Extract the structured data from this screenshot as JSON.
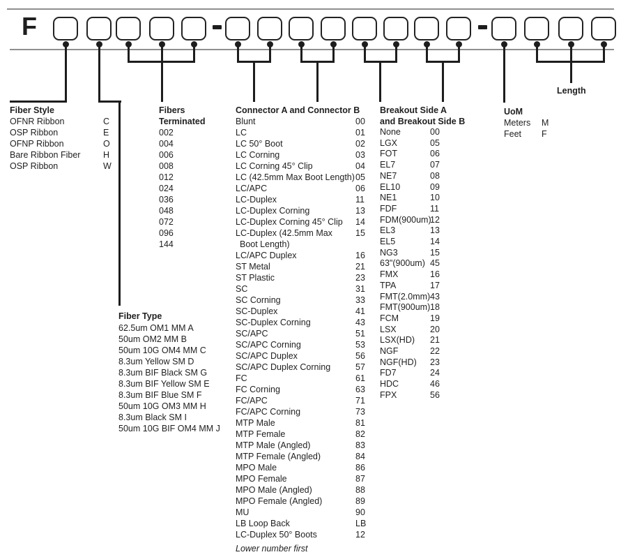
{
  "part_number": {
    "prefix": "F",
    "separator": "-",
    "box_groups": [
      5,
      8,
      4
    ]
  },
  "sections": {
    "fiber_style": {
      "title": "Fiber Style",
      "items": [
        {
          "label": "OFNR Ribbon",
          "code": "C"
        },
        {
          "label": "OSP Ribbon",
          "code": "E"
        },
        {
          "label": "OFNP Ribbon",
          "code": "O"
        },
        {
          "label": "Bare Ribbon Fiber",
          "code": "H"
        },
        {
          "label": "OSP Ribbon",
          "code": "W"
        }
      ]
    },
    "fibers_terminated": {
      "title_line1": "Fibers",
      "title_line2": "Terminated",
      "items": [
        "002",
        "004",
        "006",
        "008",
        "012",
        "024",
        "036",
        "048",
        "072",
        "096",
        "144"
      ]
    },
    "fiber_type": {
      "title": "Fiber Type",
      "items": [
        "62.5um OM1 MM A",
        "50um OM2 MM B",
        "50um 10G OM4 MM C",
        "8.3um Yellow SM D",
        "8.3um BIF Black SM G",
        "8.3um BIF Yellow SM E",
        "8.3um BIF Blue SM F",
        "50um 10G OM3 MM H",
        "8.3um Black SM I",
        "50um 10G BIF OM4 MM J"
      ]
    },
    "connector": {
      "title": "Connector A and Connector B",
      "items": [
        {
          "label": "Blunt",
          "code": "00"
        },
        {
          "label": "LC",
          "code": "01"
        },
        {
          "label": "LC 50° Boot",
          "code": "02"
        },
        {
          "label": "LC Corning",
          "code": "03"
        },
        {
          "label": "LC Corning 45° Clip",
          "code": "04"
        },
        {
          "label": "LC (42.5mm Max Boot Length)",
          "code": "05"
        },
        {
          "label": "LC/APC",
          "code": "06"
        },
        {
          "label": "LC-Duplex",
          "code": "11"
        },
        {
          "label": "LC-Duplex Corning",
          "code": "13"
        },
        {
          "label": "LC-Duplex Corning 45° Clip",
          "code": "14"
        },
        {
          "label": "LC-Duplex (42.5mm Max",
          "label2": "Boot Length)",
          "code": "15"
        },
        {
          "label": "LC/APC Duplex",
          "code": "16"
        },
        {
          "label": "ST Metal",
          "code": "21"
        },
        {
          "label": "ST Plastic",
          "code": "23"
        },
        {
          "label": "SC",
          "code": "31"
        },
        {
          "label": "SC Corning",
          "code": "33"
        },
        {
          "label": "SC-Duplex",
          "code": "41"
        },
        {
          "label": "SC-Duplex Corning",
          "code": "43"
        },
        {
          "label": "SC/APC",
          "code": "51"
        },
        {
          "label": "SC/APC Corning",
          "code": "53"
        },
        {
          "label": "SC/APC Duplex",
          "code": "56"
        },
        {
          "label": "SC/APC Duplex Corning",
          "code": "57"
        },
        {
          "label": "FC",
          "code": "61"
        },
        {
          "label": "FC Corning",
          "code": "63"
        },
        {
          "label": "FC/APC",
          "code": "71"
        },
        {
          "label": "FC/APC Corning",
          "code": "73"
        },
        {
          "label": "MTP Male",
          "code": "81"
        },
        {
          "label": "MTP Female",
          "code": "82"
        },
        {
          "label": "MTP Male (Angled)",
          "code": "83"
        },
        {
          "label": "MTP Female (Angled)",
          "code": "84"
        },
        {
          "label": "MPO Male",
          "code": "86"
        },
        {
          "label": "MPO Female",
          "code": "87"
        },
        {
          "label": "MPO Male (Angled)",
          "code": "88"
        },
        {
          "label": "MPO Female (Angled)",
          "code": "89"
        },
        {
          "label": "MU",
          "code": "90"
        },
        {
          "label": "LB Loop Back",
          "code": "LB"
        },
        {
          "label": "LC-Duplex 50° Boots",
          "code": "12"
        }
      ],
      "note": "Lower number first"
    },
    "breakout": {
      "title_line1": "Breakout Side A",
      "title_line2": "and Breakout Side B",
      "items": [
        {
          "label": "None",
          "code": "00"
        },
        {
          "label": "LGX",
          "code": "05"
        },
        {
          "label": "FOT",
          "code": "06"
        },
        {
          "label": "EL7",
          "code": "07"
        },
        {
          "label": "NE7",
          "code": "08"
        },
        {
          "label": "EL10",
          "code": "09"
        },
        {
          "label": "NE1",
          "code": "10"
        },
        {
          "label": "FDF",
          "code": "11"
        },
        {
          "label": "FDM(900um)",
          "code": "12"
        },
        {
          "label": "EL3",
          "code": "13"
        },
        {
          "label": "EL5",
          "code": "14"
        },
        {
          "label": "NG3",
          "code": "15"
        },
        {
          "label": "63\"(900um)",
          "code": "45"
        },
        {
          "label": "FMX",
          "code": "16"
        },
        {
          "label": "TPA",
          "code": "17"
        },
        {
          "label": "FMT(2.0mm)",
          "code": "43"
        },
        {
          "label": "FMT(900um)",
          "code": "18"
        },
        {
          "label": "FCM",
          "code": "19"
        },
        {
          "label": "LSX",
          "code": "20"
        },
        {
          "label": "LSX(HD)",
          "code": "21"
        },
        {
          "label": "NGF",
          "code": "22"
        },
        {
          "label": "NGF(HD)",
          "code": "23"
        },
        {
          "label": "FD7",
          "code": "24"
        },
        {
          "label": "HDC",
          "code": "46"
        },
        {
          "label": "FPX",
          "code": "56"
        }
      ]
    },
    "uom": {
      "title": "UoM",
      "items": [
        {
          "label": "Meters",
          "code": "M"
        },
        {
          "label": "Feet",
          "code": "F"
        }
      ]
    },
    "length": {
      "title": "Length"
    }
  },
  "colors": {
    "line_black": "#1d1d1d",
    "rule_gray": "#8f8f8f",
    "text": "#1f1f1f",
    "background": "#ffffff"
  }
}
